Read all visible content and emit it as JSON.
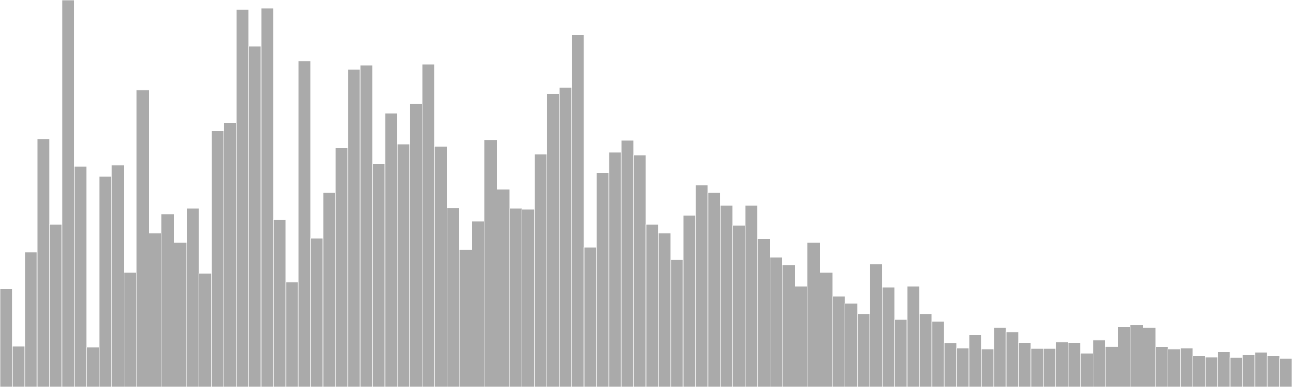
{
  "chart_data": {
    "type": "bar",
    "title": "",
    "xlabel": "",
    "ylabel": "",
    "ylim": [
      0,
      100
    ],
    "grid": false,
    "legend": "none",
    "colors": {
      "bar_fill": "#aaaaaa",
      "bar_stroke": "#ffffff",
      "background": "#ffffff"
    },
    "values": [
      25.3,
      10.6,
      34.8,
      64.0,
      42.0,
      100.0,
      57.0,
      10.2,
      54.5,
      57.3,
      29.7,
      76.7,
      39.8,
      44.6,
      37.4,
      46.2,
      29.3,
      66.2,
      68.2,
      97.6,
      88.1,
      97.9,
      43.2,
      27.1,
      84.2,
      38.5,
      50.3,
      61.8,
      82.0,
      83.1,
      57.6,
      70.8,
      62.7,
      73.2,
      83.3,
      62.2,
      46.3,
      35.5,
      42.9,
      63.8,
      51.0,
      46.2,
      46.0,
      60.2,
      75.9,
      77.4,
      90.9,
      36.2,
      55.3,
      60.6,
      63.7,
      60.0,
      42.0,
      39.8,
      33.0,
      44.3,
      52.1,
      50.3,
      47.0,
      41.8,
      47.0,
      38.3,
      33.5,
      31.5,
      26.0,
      37.4,
      29.7,
      23.5,
      21.6,
      18.8,
      31.7,
      25.8,
      17.4,
      26.0,
      18.8,
      17.0,
      11.3,
      10.0,
      13.5,
      9.8,
      15.3,
      14.2,
      11.5,
      9.9,
      9.9,
      11.7,
      11.5,
      8.7,
      12.1,
      10.5,
      15.5,
      16.1,
      15.3,
      10.4,
      9.8,
      10.0,
      8.1,
      7.7,
      9.1,
      7.6,
      8.4,
      8.9,
      8.1,
      7.4
    ]
  }
}
